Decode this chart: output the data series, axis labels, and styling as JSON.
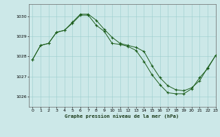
{
  "title": "Graphe pression niveau de la mer (hPa)",
  "bg_color": "#cce8e8",
  "line_color": "#1a5c1a",
  "grid_color": "#99cccc",
  "xlim": [
    -0.5,
    23
  ],
  "ylim": [
    1025.5,
    1030.6
  ],
  "yticks": [
    1026,
    1027,
    1028,
    1029,
    1030
  ],
  "xticks": [
    0,
    1,
    2,
    3,
    4,
    5,
    6,
    7,
    8,
    9,
    10,
    11,
    12,
    13,
    14,
    15,
    16,
    17,
    18,
    19,
    20,
    21,
    22,
    23
  ],
  "series1_x": [
    0,
    1,
    2,
    3,
    4,
    5,
    6,
    7,
    8,
    9,
    10,
    11,
    12,
    13,
    14,
    15,
    16,
    17,
    18,
    19,
    20,
    21,
    22,
    23
  ],
  "series1_y": [
    1027.85,
    1028.55,
    1028.65,
    1029.2,
    1029.3,
    1029.7,
    1030.1,
    1030.1,
    1029.8,
    1029.35,
    1028.95,
    1028.65,
    1028.55,
    1028.45,
    1028.25,
    1027.55,
    1026.95,
    1026.55,
    1026.35,
    1026.3,
    1026.45,
    1026.8,
    1027.45,
    1028.05
  ],
  "series2_x": [
    0,
    1,
    2,
    3,
    4,
    5,
    6,
    7,
    8,
    9,
    10,
    11,
    12,
    13,
    14,
    15,
    16,
    17,
    18,
    19,
    20,
    21,
    22,
    23
  ],
  "series2_y": [
    1027.85,
    1028.55,
    1028.65,
    1029.2,
    1029.3,
    1029.65,
    1030.05,
    1030.05,
    1029.55,
    1029.25,
    1028.65,
    1028.6,
    1028.5,
    1028.3,
    1027.75,
    1027.1,
    1026.6,
    1026.2,
    1026.15,
    1026.15,
    1026.4,
    1026.95,
    1027.4,
    1028.05
  ]
}
